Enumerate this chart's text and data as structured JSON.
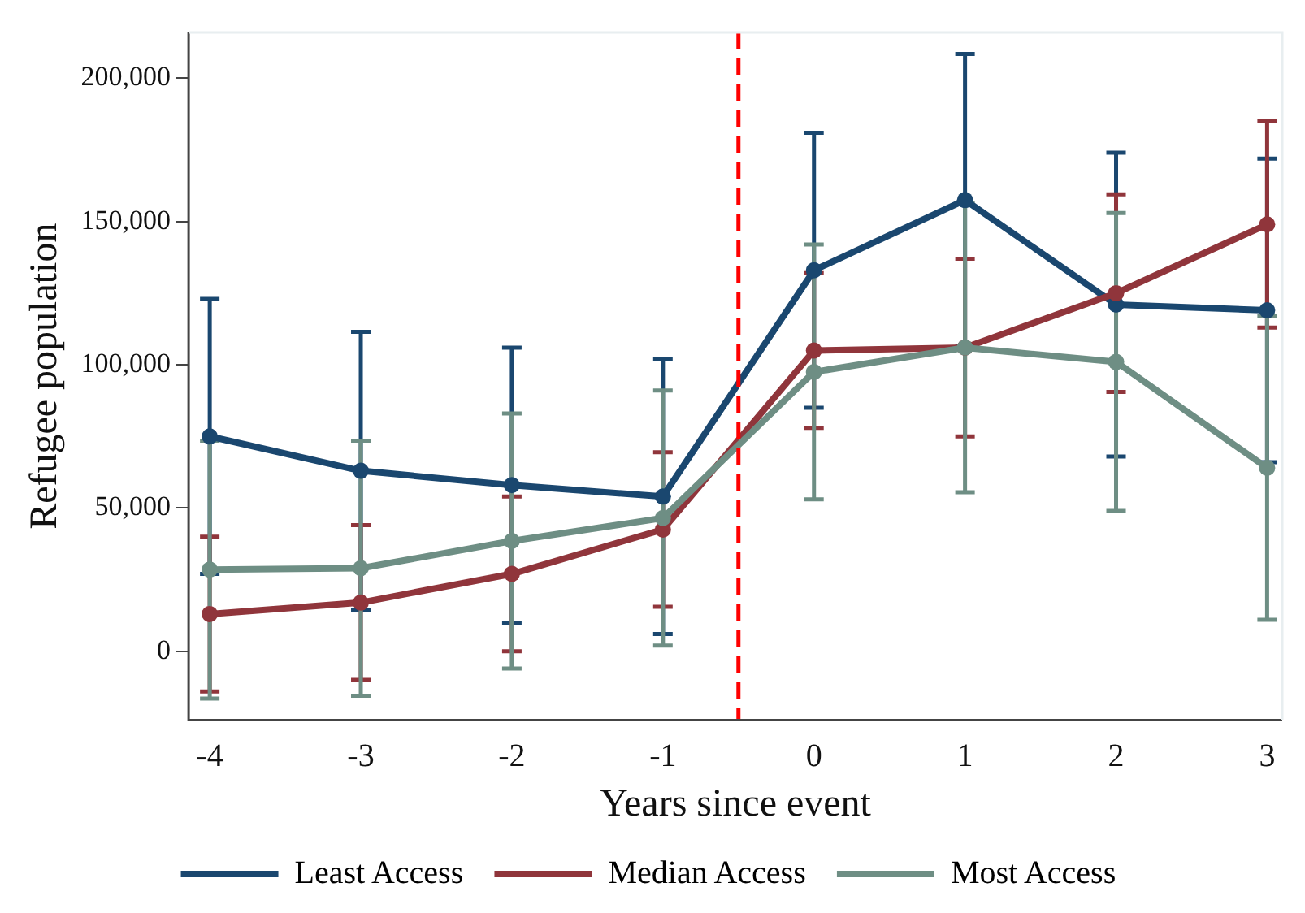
{
  "chart_data": {
    "type": "line",
    "xlabel": "Years since event",
    "ylabel": "Refugee population",
    "x": [
      -4,
      -3,
      -2,
      -1,
      0,
      1,
      2,
      3
    ],
    "xlim": [
      -4.14,
      3.1
    ],
    "xticks": [
      -4,
      -3,
      -2,
      -1,
      0,
      1,
      2,
      3
    ],
    "ylim": [
      -24000,
      216000
    ],
    "yticks": [
      {
        "value": 0,
        "label": "0"
      },
      {
        "value": 50000,
        "label": "50,000"
      },
      {
        "value": 100000,
        "label": "100,000"
      },
      {
        "value": 150000,
        "label": "150,000"
      },
      {
        "value": 200000,
        "label": "200,000"
      }
    ],
    "series": [
      {
        "name": "Least Access",
        "color": "#1a476f",
        "values": [
          75000,
          63000,
          58000,
          54000,
          133000,
          157500,
          121000,
          119000
        ],
        "errors": [
          48000,
          48500,
          48000,
          48000,
          48000,
          51000,
          53000,
          53000
        ]
      },
      {
        "name": "Median Access",
        "color": "#90353b",
        "values": [
          13000,
          17000,
          27000,
          42500,
          105000,
          106000,
          125000,
          149000
        ],
        "errors": [
          27000,
          27000,
          27000,
          27000,
          27000,
          31000,
          34500,
          36000
        ]
      },
      {
        "name": "Most Access",
        "color": "#6e8e84",
        "values": [
          28500,
          29000,
          38500,
          46500,
          97500,
          106000,
          101000,
          64000
        ],
        "errors": [
          45000,
          44500,
          44500,
          44500,
          44500,
          50500,
          52000,
          53000
        ]
      }
    ],
    "ref_lines": [
      {
        "axis": "x",
        "value": -0.5,
        "color": "#ff0000",
        "line_style": "dashed"
      }
    ],
    "marker": "circle",
    "line_style": "solid",
    "grid": false,
    "legend": "bottom"
  }
}
